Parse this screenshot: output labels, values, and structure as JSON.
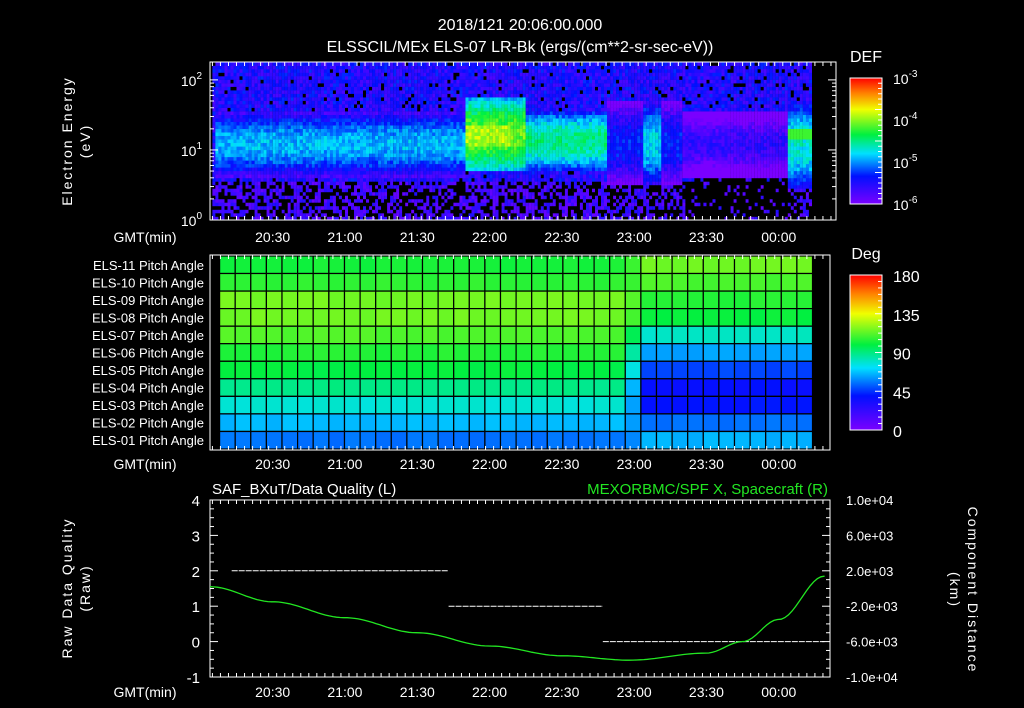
{
  "header": {
    "title": "2018/121 20:06:00.000",
    "subtitle": "ELSSCIL/MEx ELS-07 LR-Bk  (ergs/(cm**2-sr-sec-eV))"
  },
  "colors": {
    "background": "#000000",
    "axis": "#ffffff",
    "orbit_line": "#22e622",
    "quality_line": "#ffffff"
  },
  "chart_data": [
    {
      "type": "heatmap",
      "name": "electron-energy-spectrogram",
      "ylabel": [
        "Electron Energy",
        "(eV)"
      ],
      "xlabel": "GMT(min)",
      "xticks": [
        "20:30",
        "21:00",
        "21:30",
        "22:00",
        "22:30",
        "23:00",
        "23:30",
        "00:00"
      ],
      "yticks": [
        {
          "base": "10",
          "exp": "0"
        },
        {
          "base": "10",
          "exp": "1"
        },
        {
          "base": "10",
          "exp": "2"
        }
      ],
      "ylim_eV": [
        1,
        180
      ],
      "yscale": "log",
      "colorbar": {
        "title": "DEF",
        "scale": "log",
        "range": [
          -6,
          -3
        ],
        "labels": [
          {
            "base": "10",
            "exp": "-3"
          },
          {
            "base": "10",
            "exp": "-4"
          },
          {
            "base": "10",
            "exp": "-5"
          },
          {
            "base": "10",
            "exp": "-6"
          }
        ]
      },
      "segments": [
        {
          "start": "20:06",
          "end": "21:50",
          "low_eV": 5,
          "high_eV": 30,
          "peak_log_def": -4.9
        },
        {
          "start": "21:50",
          "end": "22:15",
          "low_eV": 6,
          "high_eV": 45,
          "peak_log_def": -4.1
        },
        {
          "start": "22:15",
          "end": "22:48",
          "low_eV": 6,
          "high_eV": 30,
          "peak_log_def": -4.5
        },
        {
          "start": "22:48",
          "end": "23:20",
          "low_eV": 4,
          "high_eV": 40,
          "peak_log_def": -5.3
        },
        {
          "start": "23:20",
          "end": "00:03",
          "low_eV": 5,
          "high_eV": 30,
          "peak_log_def": -5.6
        },
        {
          "start": "00:03",
          "end": "00:20",
          "low_eV": 3.5,
          "high_eV": 40,
          "peak_log_def": -4.7
        }
      ]
    },
    {
      "type": "heatmap",
      "name": "pitch-angle",
      "xlabel": "GMT(min)",
      "xticks": [
        "20:30",
        "21:00",
        "21:30",
        "22:00",
        "22:30",
        "23:00",
        "23:30",
        "00:00"
      ],
      "rows": [
        "ELS-11 Pitch Angle",
        "ELS-10 Pitch Angle",
        "ELS-09 Pitch Angle",
        "ELS-08 Pitch Angle",
        "ELS-07 Pitch Angle",
        "ELS-06 Pitch Angle",
        "ELS-05 Pitch Angle",
        "ELS-04 Pitch Angle",
        "ELS-03 Pitch Angle",
        "ELS-02 Pitch Angle",
        "ELS-01 Pitch Angle"
      ],
      "transition_time": "23:00",
      "values_before_deg": [
        102,
        106,
        116,
        116,
        111,
        104,
        99,
        89,
        78,
        66,
        55
      ],
      "values_after_deg": [
        116,
        110,
        104,
        100,
        80,
        62,
        48,
        38,
        40,
        55,
        65
      ],
      "colorbar": {
        "title": "Deg",
        "range": [
          0,
          180
        ],
        "labels": [
          "180",
          "135",
          "90",
          "45",
          "0"
        ]
      }
    },
    {
      "type": "line",
      "name": "data-quality-and-orbit",
      "title_left": "SAF_BXuT/Data Quality (L)",
      "title_right": "MEXORBMC/SPF X, Spacecraft (R)",
      "ylabel_left": [
        "Raw Data Quality",
        "(Raw)"
      ],
      "ylabel_right": [
        "Component Distance",
        "(km)"
      ],
      "xlabel": "GMT(min)",
      "xticks": [
        "20:30",
        "21:00",
        "21:30",
        "22:00",
        "22:30",
        "23:00",
        "23:30",
        "00:00"
      ],
      "ylim_left": [
        -1,
        4
      ],
      "yticks_left": [
        "4",
        "3",
        "2",
        "1",
        "0",
        "-1"
      ],
      "ylim_right": [
        -10000,
        10000
      ],
      "yticks_right": [
        "1.0e+04",
        "6.0e+03",
        "2.0e+03",
        "-2.0e+03",
        "-6.0e+03",
        "-1.0e+04"
      ],
      "series": [
        {
          "name": "Data Quality",
          "axis": "left",
          "segments": [
            {
              "start": "20:13",
              "end": "21:43",
              "value": 2
            },
            {
              "start": "21:43",
              "end": "22:47",
              "value": 1
            },
            {
              "start": "22:47",
              "end": "00:19",
              "value": 0
            }
          ]
        },
        {
          "name": "SPF X",
          "axis": "right",
          "x": [
            "20:04",
            "20:30",
            "21:00",
            "21:30",
            "22:00",
            "22:30",
            "22:58",
            "23:30",
            "23:45",
            "00:00",
            "00:19"
          ],
          "values": [
            200,
            -1500,
            -3300,
            -5000,
            -6500,
            -7600,
            -8100,
            -7300,
            -6000,
            -3500,
            1400
          ]
        }
      ]
    }
  ]
}
